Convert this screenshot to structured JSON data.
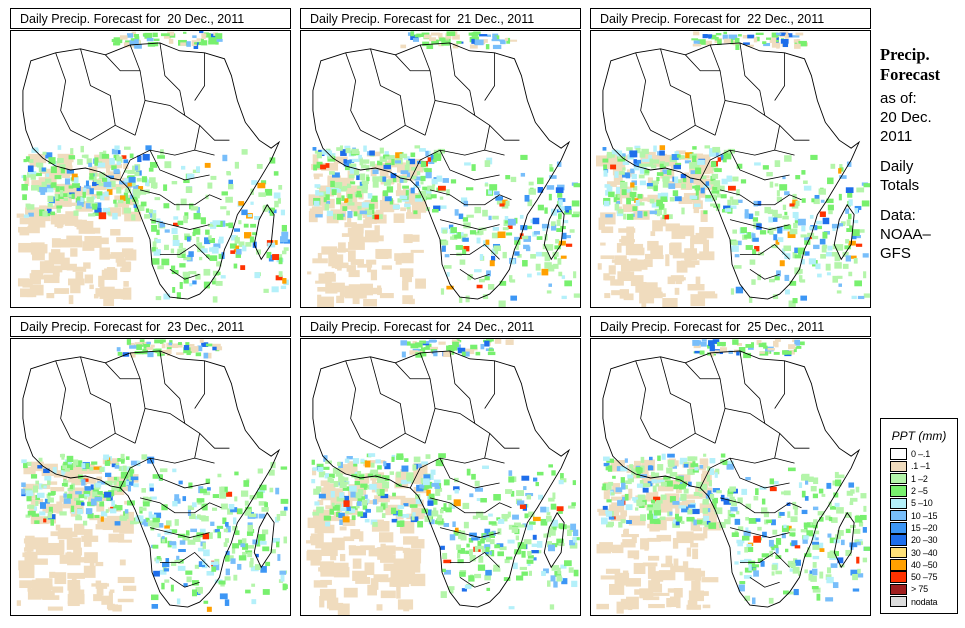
{
  "panels": [
    {
      "title": "Daily Precip. Forecast for  20 Dec., 2011",
      "seed": 1
    },
    {
      "title": "Daily Precip. Forecast for  21 Dec., 2011",
      "seed": 2
    },
    {
      "title": "Daily Precip. Forecast for  22 Dec., 2011",
      "seed": 3
    },
    {
      "title": "Daily Precip. Forecast for  23 Dec., 2011",
      "seed": 4
    },
    {
      "title": "Daily Precip. Forecast for  24 Dec., 2011",
      "seed": 5
    },
    {
      "title": "Daily Precip. Forecast for  25 Dec., 2011",
      "seed": 6
    }
  ],
  "side": {
    "heading_1": "Precip.",
    "heading_2": "Forecast",
    "as_of": "as of:",
    "date_1": "20 Dec.",
    "date_2": "2011",
    "totals_1": "Daily",
    "totals_2": "Totals",
    "data_1": "Data:",
    "data_2": "NOAA–",
    "data_3": "GFS"
  },
  "legend": {
    "title": "PPT (mm)",
    "items": [
      {
        "label": "0 –.1",
        "color": "#ffffff"
      },
      {
        "label": ".1 –1",
        "color": "#f0dcbe"
      },
      {
        "label": "1 –2",
        "color": "#b4f5aa"
      },
      {
        "label": "2 –5",
        "color": "#78f06e"
      },
      {
        "label": "5 –10",
        "color": "#b4f0fa"
      },
      {
        "label": "10 –15",
        "color": "#78befa"
      },
      {
        "label": "15 –20",
        "color": "#3c96f5"
      },
      {
        "label": "20 –30",
        "color": "#1e6eeb"
      },
      {
        "label": "30 –40",
        "color": "#ffe178"
      },
      {
        "label": "40 –50",
        "color": "#ffa000"
      },
      {
        "label": "50 –75",
        "color": "#ff3200"
      },
      {
        "label": "> 75",
        "color": "#a01e1e"
      },
      {
        "label": "nodata",
        "color": "#dcdcdc"
      }
    ]
  }
}
